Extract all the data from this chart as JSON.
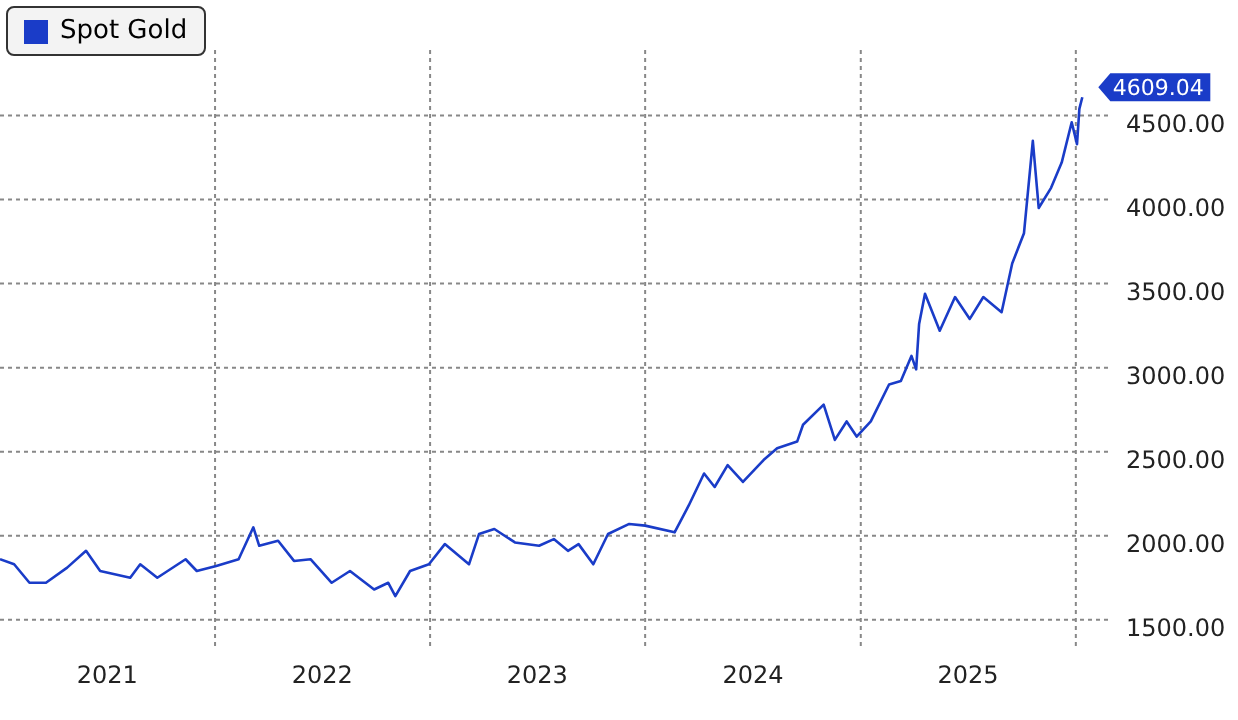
{
  "chart_data": {
    "type": "line",
    "legend": "top left",
    "grid": true,
    "line_style": "solid",
    "marker": "none",
    "x": [
      "2021-01-01",
      "2021-01-25",
      "2021-02-20",
      "2021-03-20",
      "2021-04-25",
      "2021-05-27",
      "2021-06-20",
      "2021-08-10",
      "2021-08-27",
      "2021-09-25",
      "2021-11-12",
      "2021-12-01",
      "2022-01-03",
      "2022-02-10",
      "2022-03-07",
      "2022-03-17",
      "2022-04-18",
      "2022-05-15",
      "2022-06-12",
      "2022-07-18",
      "2022-08-18",
      "2022-09-28",
      "2022-10-22",
      "2022-11-03",
      "2022-11-28",
      "2022-12-30",
      "2023-01-26",
      "2023-03-08",
      "2023-03-25",
      "2023-04-20",
      "2023-05-25",
      "2023-07-05",
      "2023-07-30",
      "2023-08-23",
      "2023-09-10",
      "2023-10-05",
      "2023-10-30",
      "2023-12-05",
      "2024-01-01",
      "2024-02-20",
      "2024-03-15",
      "2024-04-10",
      "2024-04-28",
      "2024-05-20",
      "2024-06-15",
      "2024-07-20",
      "2024-08-12",
      "2024-09-15",
      "2024-09-25",
      "2024-10-30",
      "2024-11-18",
      "2024-12-08",
      "2024-12-25",
      "2025-01-18",
      "2025-02-18",
      "2025-03-10",
      "2025-03-28",
      "2025-04-05",
      "2025-04-10",
      "2025-04-20",
      "2025-05-15",
      "2025-06-10",
      "2025-07-05",
      "2025-07-28",
      "2025-08-28",
      "2025-09-15",
      "2025-10-05",
      "2025-10-20",
      "2025-10-30",
      "2025-11-20",
      "2025-12-08",
      "2025-12-25",
      "2026-01-03",
      "2026-01-07",
      "2026-01-12"
    ],
    "series": [
      {
        "name": "Spot Gold",
        "color": "#1a3cc8",
        "values": [
          1860,
          1830,
          1720,
          1720,
          1810,
          1910,
          1790,
          1750,
          1830,
          1750,
          1860,
          1790,
          1820,
          1860,
          2050,
          1940,
          1970,
          1850,
          1860,
          1720,
          1790,
          1680,
          1720,
          1640,
          1790,
          1830,
          1950,
          1830,
          2010,
          2040,
          1960,
          1940,
          1980,
          1910,
          1950,
          1830,
          2010,
          2070,
          2060,
          2020,
          2180,
          2370,
          2290,
          2420,
          2320,
          2450,
          2520,
          2560,
          2660,
          2780,
          2570,
          2680,
          2590,
          2680,
          2900,
          2920,
          3070,
          2990,
          3260,
          3440,
          3220,
          3420,
          3290,
          3420,
          3330,
          3620,
          3800,
          4350,
          3950,
          4070,
          4220,
          4460,
          4330,
          4540,
          4609.04
        ],
        "value_labels": [
          null,
          null,
          null,
          null,
          null,
          null,
          null,
          null,
          null,
          null,
          null,
          null,
          null,
          null,
          null,
          null,
          null,
          null,
          null,
          null,
          null,
          null,
          null,
          null,
          null,
          null,
          null,
          null,
          null,
          null,
          null,
          null,
          null,
          null,
          null,
          null,
          null,
          null,
          null,
          null,
          null,
          null,
          null,
          null,
          null,
          null,
          null,
          null,
          null,
          null,
          null,
          null,
          null,
          null,
          null,
          null,
          null,
          null,
          null,
          null,
          null,
          null,
          null,
          null,
          null,
          null,
          null,
          null,
          null,
          null,
          null,
          null,
          null,
          null,
          "4609.04"
        ]
      }
    ],
    "xlim": [
      "2021-01-01",
      "2026-02-28"
    ],
    "xticks": [
      {
        "value": "2021-07-02",
        "label": "2021"
      },
      {
        "value": "2022-01-01",
        "label": null
      },
      {
        "value": "2022-07-02",
        "label": "2022"
      },
      {
        "value": "2023-01-01",
        "label": null
      },
      {
        "value": "2023-07-02",
        "label": "2023"
      },
      {
        "value": "2024-01-01",
        "label": null
      },
      {
        "value": "2024-07-02",
        "label": "2024"
      },
      {
        "value": "2025-01-01",
        "label": null
      },
      {
        "value": "2025-07-02",
        "label": "2025"
      },
      {
        "value": "2026-01-01",
        "label": null
      }
    ],
    "ylim": [
      1320,
      4890
    ],
    "yticks": [
      {
        "value": 1500,
        "label": "1500.00"
      },
      {
        "value": 2000,
        "label": "2000.00"
      },
      {
        "value": 2500,
        "label": "2500.00"
      },
      {
        "value": 3000,
        "label": "3000.00"
      },
      {
        "value": 3500,
        "label": "3500.00"
      },
      {
        "value": 4000,
        "label": "4000.00"
      },
      {
        "value": 4500,
        "label": "4500.00"
      }
    ]
  }
}
